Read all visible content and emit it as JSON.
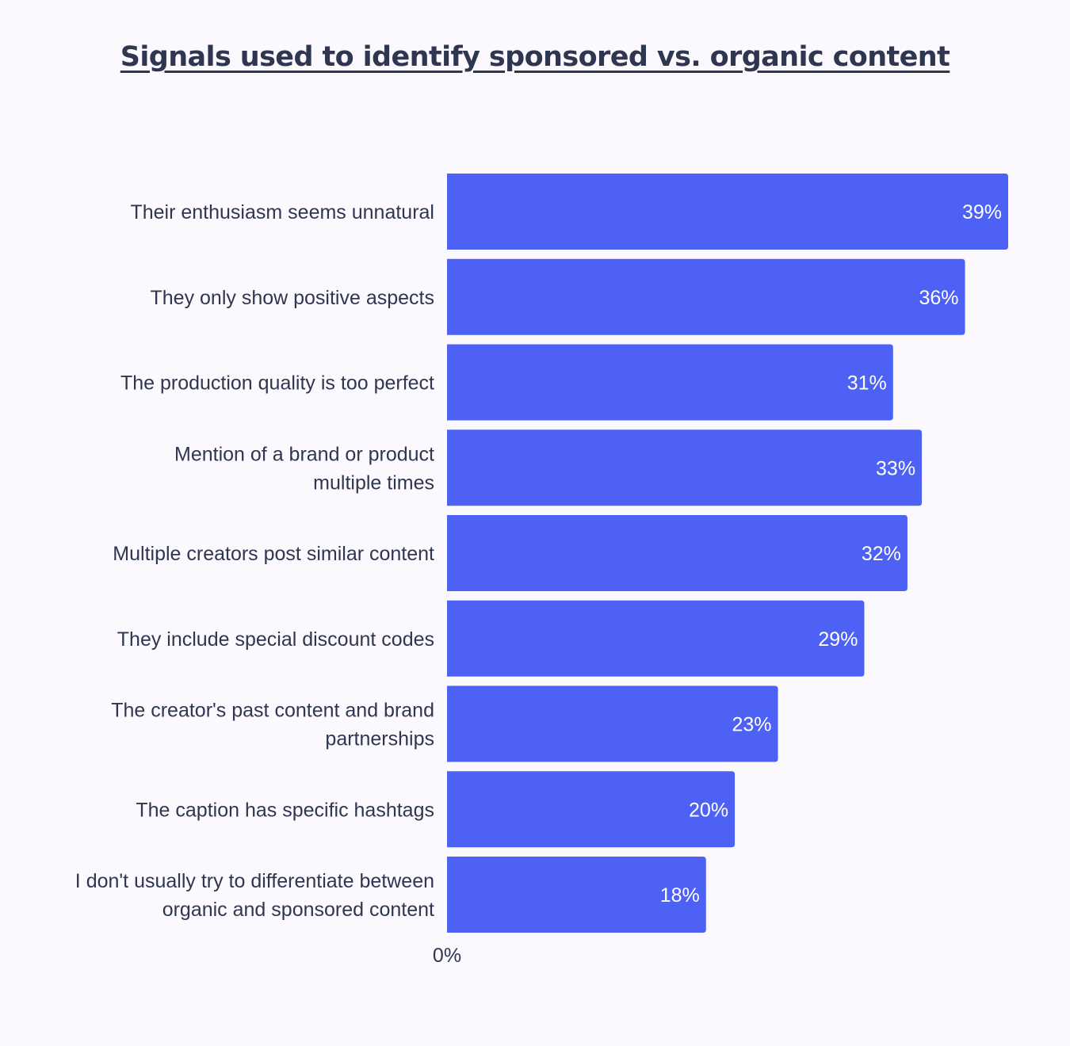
{
  "colors": {
    "background": "#fbf9fe",
    "bar": "#4d61f4",
    "text": "#2e3650",
    "bar_label": "#ffffff"
  },
  "chart_data": {
    "type": "bar",
    "orientation": "horizontal",
    "title": "Signals used to identify sponsored vs. organic content",
    "xlabel": "",
    "ylabel": "",
    "xlim": [
      0,
      39
    ],
    "x_tick_labels": [
      "0%"
    ],
    "grid": false,
    "legend": "none",
    "categories": [
      "Their enthusiasm seems unnatural",
      "They only show positive aspects",
      "The production quality is too perfect",
      "Mention of a brand or product multiple times",
      "Multiple creators post similar content",
      "They include special discount codes",
      "The creator's past content and brand partnerships",
      "The caption has specific hashtags",
      "I don't usually try to differentiate between organic and sponsored content"
    ],
    "category_lines": [
      [
        "Their enthusiasm seems unnatural"
      ],
      [
        "They only show positive aspects"
      ],
      [
        "The production quality is too perfect"
      ],
      [
        "Mention of a brand or product",
        "multiple times"
      ],
      [
        "Multiple creators post similar content"
      ],
      [
        "They include special discount codes"
      ],
      [
        "The creator's past content and brand",
        "partnerships"
      ],
      [
        "The caption has specific hashtags"
      ],
      [
        "I don't usually try to differentiate between",
        "organic and sponsored content"
      ]
    ],
    "values": [
      39,
      36,
      31,
      33,
      32,
      29,
      23,
      20,
      18
    ],
    "value_labels": [
      "39%",
      "36%",
      "31%",
      "33%",
      "32%",
      "29%",
      "23%",
      "20%",
      "18%"
    ]
  }
}
